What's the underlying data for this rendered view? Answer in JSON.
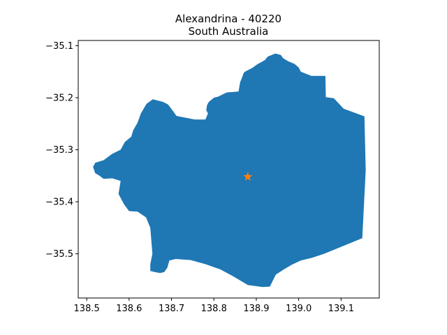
{
  "title": {
    "line1": "Alexandrina - 40220",
    "line2": "South Australia"
  },
  "colors": {
    "region_fill": "#1f77b4",
    "marker": "#ff7f0e",
    "axes": "#000000",
    "background": "#ffffff"
  },
  "chart_data": {
    "type": "map",
    "title": "Alexandrina - 40220\nSouth Australia",
    "xlim": [
      138.48,
      139.19
    ],
    "ylim": [
      -35.585,
      -35.09
    ],
    "x_ticks": [
      {
        "value": 138.5,
        "label": "138.5"
      },
      {
        "value": 138.6,
        "label": "138.6"
      },
      {
        "value": 138.7,
        "label": "138.7"
      },
      {
        "value": 138.8,
        "label": "138.8"
      },
      {
        "value": 138.9,
        "label": "138.9"
      },
      {
        "value": 139.0,
        "label": "139.0"
      },
      {
        "value": 139.1,
        "label": "139.1"
      }
    ],
    "y_ticks": [
      {
        "value": -35.1,
        "label": "−35.1"
      },
      {
        "value": -35.2,
        "label": "−35.2"
      },
      {
        "value": -35.3,
        "label": "−35.3"
      },
      {
        "value": -35.4,
        "label": "−35.4"
      },
      {
        "value": -35.5,
        "label": "−35.5"
      }
    ],
    "grid": false,
    "marker": {
      "shape": "star",
      "lon": 138.88,
      "lat": -35.352
    },
    "region_outline": [
      [
        138.927,
        -35.121
      ],
      [
        138.945,
        -35.115
      ],
      [
        138.958,
        -35.118
      ],
      [
        138.963,
        -35.124
      ],
      [
        138.975,
        -35.13
      ],
      [
        138.99,
        -35.135
      ],
      [
        139.0,
        -35.142
      ],
      [
        139.005,
        -35.15
      ],
      [
        139.03,
        -35.158
      ],
      [
        139.063,
        -35.158
      ],
      [
        139.064,
        -35.199
      ],
      [
        139.083,
        -35.201
      ],
      [
        139.106,
        -35.221
      ],
      [
        139.155,
        -35.236
      ],
      [
        139.158,
        -35.34
      ],
      [
        139.15,
        -35.47
      ],
      [
        139.06,
        -35.5
      ],
      [
        139.03,
        -35.508
      ],
      [
        139.005,
        -35.513
      ],
      [
        138.984,
        -35.521
      ],
      [
        138.967,
        -35.529
      ],
      [
        138.946,
        -35.54
      ],
      [
        138.932,
        -35.563
      ],
      [
        138.915,
        -35.564
      ],
      [
        138.88,
        -35.56
      ],
      [
        138.845,
        -35.543
      ],
      [
        138.815,
        -35.53
      ],
      [
        138.78,
        -35.52
      ],
      [
        138.745,
        -35.512
      ],
      [
        138.71,
        -35.51
      ],
      [
        138.695,
        -35.513
      ],
      [
        138.69,
        -35.527
      ],
      [
        138.683,
        -35.535
      ],
      [
        138.673,
        -35.537
      ],
      [
        138.66,
        -35.535
      ],
      [
        138.65,
        -35.533
      ],
      [
        138.65,
        -35.52
      ],
      [
        138.655,
        -35.5
      ],
      [
        138.65,
        -35.45
      ],
      [
        138.64,
        -35.43
      ],
      [
        138.62,
        -35.419
      ],
      [
        138.6,
        -35.418
      ],
      [
        138.588,
        -35.405
      ],
      [
        138.575,
        -35.385
      ],
      [
        138.58,
        -35.36
      ],
      [
        138.56,
        -35.355
      ],
      [
        138.54,
        -35.356
      ],
      [
        138.53,
        -35.35
      ],
      [
        138.52,
        -35.345
      ],
      [
        138.515,
        -35.333
      ],
      [
        138.52,
        -35.325
      ],
      [
        138.54,
        -35.32
      ],
      [
        138.55,
        -35.314
      ],
      [
        138.56,
        -35.308
      ],
      [
        138.58,
        -35.3
      ],
      [
        138.59,
        -35.285
      ],
      [
        138.605,
        -35.275
      ],
      [
        138.61,
        -35.262
      ],
      [
        138.62,
        -35.248
      ],
      [
        138.628,
        -35.23
      ],
      [
        138.641,
        -35.212
      ],
      [
        138.656,
        -35.203
      ],
      [
        138.68,
        -35.208
      ],
      [
        138.692,
        -35.213
      ],
      [
        138.712,
        -35.235
      ],
      [
        138.755,
        -35.242
      ],
      [
        138.78,
        -35.242
      ],
      [
        138.786,
        -35.23
      ],
      [
        138.782,
        -35.224
      ],
      [
        138.784,
        -35.214
      ],
      [
        138.788,
        -35.208
      ],
      [
        138.8,
        -35.2
      ],
      [
        138.81,
        -35.198
      ],
      [
        138.83,
        -35.19
      ],
      [
        138.858,
        -35.188
      ],
      [
        138.862,
        -35.17
      ],
      [
        138.867,
        -35.16
      ],
      [
        138.87,
        -35.153
      ],
      [
        138.873,
        -35.15
      ],
      [
        138.89,
        -35.143
      ],
      [
        138.902,
        -35.136
      ],
      [
        138.92,
        -35.128
      ]
    ]
  }
}
